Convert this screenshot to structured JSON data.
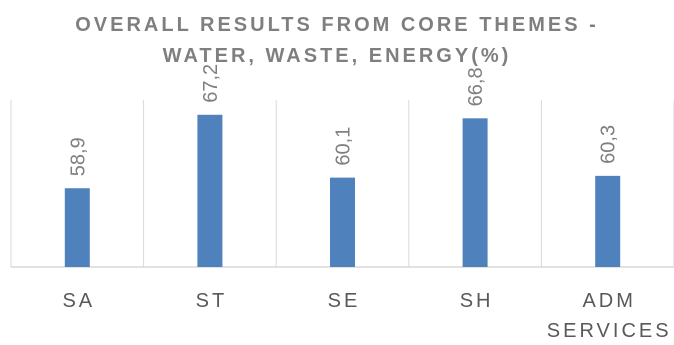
{
  "chart_data": {
    "type": "bar",
    "title_lines": [
      "OVERALL RESULTS FROM CORE THEMES -",
      "WATER, WASTE, ENERGY(%)"
    ],
    "categories": [
      [
        "SA"
      ],
      [
        "ST"
      ],
      [
        "SE"
      ],
      [
        "SH"
      ],
      [
        "ADM",
        "SERVICES"
      ]
    ],
    "values": [
      58.9,
      67.2,
      60.1,
      66.8,
      60.3
    ],
    "value_labels": [
      "58,9",
      "67,2",
      "60,1",
      "66,8",
      "60,3"
    ],
    "ylim": [
      50,
      70
    ],
    "bar_color": "#4f81bd",
    "axis_color": "#d9d9d9",
    "gridlines": false,
    "legend": "none"
  }
}
